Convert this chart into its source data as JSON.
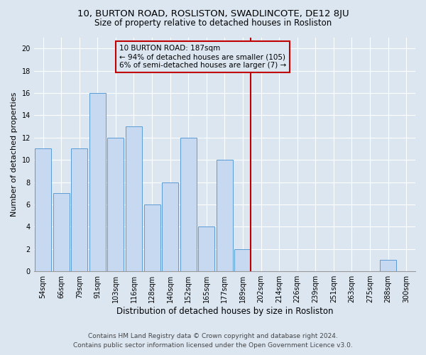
{
  "title1": "10, BURTON ROAD, ROSLISTON, SWADLINCOTE, DE12 8JU",
  "title2": "Size of property relative to detached houses in Rosliston",
  "xlabel": "Distribution of detached houses by size in Rosliston",
  "ylabel": "Number of detached properties",
  "footnote1": "Contains HM Land Registry data © Crown copyright and database right 2024.",
  "footnote2": "Contains public sector information licensed under the Open Government Licence v3.0.",
  "categories": [
    "54sqm",
    "66sqm",
    "79sqm",
    "91sqm",
    "103sqm",
    "116sqm",
    "128sqm",
    "140sqm",
    "152sqm",
    "165sqm",
    "177sqm",
    "189sqm",
    "202sqm",
    "214sqm",
    "226sqm",
    "239sqm",
    "251sqm",
    "263sqm",
    "275sqm",
    "288sqm",
    "300sqm"
  ],
  "values": [
    11,
    7,
    11,
    16,
    12,
    13,
    6,
    8,
    12,
    4,
    10,
    2,
    0,
    0,
    0,
    0,
    0,
    0,
    0,
    1,
    0
  ],
  "bar_color": "#c6d9f0",
  "bar_edge_color": "#5b9bd5",
  "background_color": "#dce6f1",
  "grid_color": "#ffffff",
  "vline_x": 11.45,
  "vline_color": "#c00000",
  "annotation_text": "10 BURTON ROAD: 187sqm\n← 94% of detached houses are smaller (105)\n6% of semi-detached houses are larger (7) →",
  "annotation_box_color": "#c00000",
  "ylim": [
    0,
    21
  ],
  "yticks": [
    0,
    2,
    4,
    6,
    8,
    10,
    12,
    14,
    16,
    18,
    20
  ],
  "title1_fontsize": 9.5,
  "title2_fontsize": 8.5,
  "xlabel_fontsize": 8.5,
  "ylabel_fontsize": 8,
  "tick_fontsize": 7,
  "annot_fontsize": 7.5,
  "footnote_fontsize": 6.5
}
